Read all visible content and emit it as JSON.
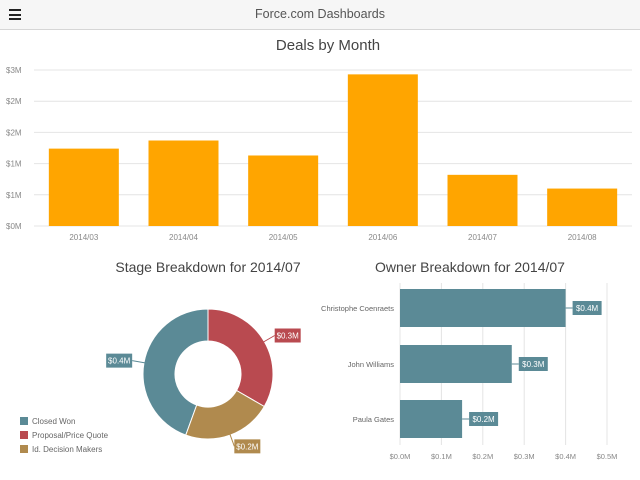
{
  "header": {
    "title": "Force.com Dashboards",
    "menu_icon": "hamburger-icon"
  },
  "colors": {
    "bar": "#ffa500",
    "teal": "#5b8a96",
    "red": "#b94a50",
    "gold": "#b08a4e"
  },
  "deals_chart": {
    "title": "Deals by Month",
    "y_ticks": [
      "$0M",
      "$1M",
      "$1M",
      "$2M",
      "$2M",
      "$3M"
    ],
    "chart_data": {
      "type": "bar",
      "title": "Deals by Month",
      "categories": [
        "2014/03",
        "2014/04",
        "2014/05",
        "2014/06",
        "2014/07",
        "2014/08"
      ],
      "values": [
        1.24,
        1.37,
        1.13,
        2.43,
        0.82,
        0.6
      ],
      "ylim": [
        0,
        2.5
      ],
      "grid": true
    }
  },
  "stage_chart": {
    "title": "Stage Breakdown for 2014/07",
    "chart_data": {
      "type": "pie",
      "title": "Stage Breakdown for 2014/07",
      "labels": [
        "Closed Won",
        "Proposal/Price Quote",
        "Id. Decision Makers"
      ],
      "values": [
        0.4,
        0.3,
        0.2
      ],
      "value_labels": [
        "$0.4M",
        "$0.3M",
        "$0.2M"
      ],
      "legend": "bottom-left"
    }
  },
  "owner_chart": {
    "title": "Owner Breakdown for 2014/07",
    "x_ticks": [
      "$0.0M",
      "$0.1M",
      "$0.2M",
      "$0.3M",
      "$0.4M",
      "$0.5M"
    ],
    "chart_data": {
      "type": "bar",
      "orientation": "horizontal",
      "title": "Owner Breakdown for 2014/07",
      "categories": [
        "Christophe Coenraets",
        "John Williams",
        "Paula Gates"
      ],
      "values": [
        0.4,
        0.27,
        0.15
      ],
      "value_labels": [
        "$0.4M",
        "$0.3M",
        "$0.2M"
      ],
      "xlim": [
        0,
        0.5
      ],
      "grid": true
    }
  }
}
